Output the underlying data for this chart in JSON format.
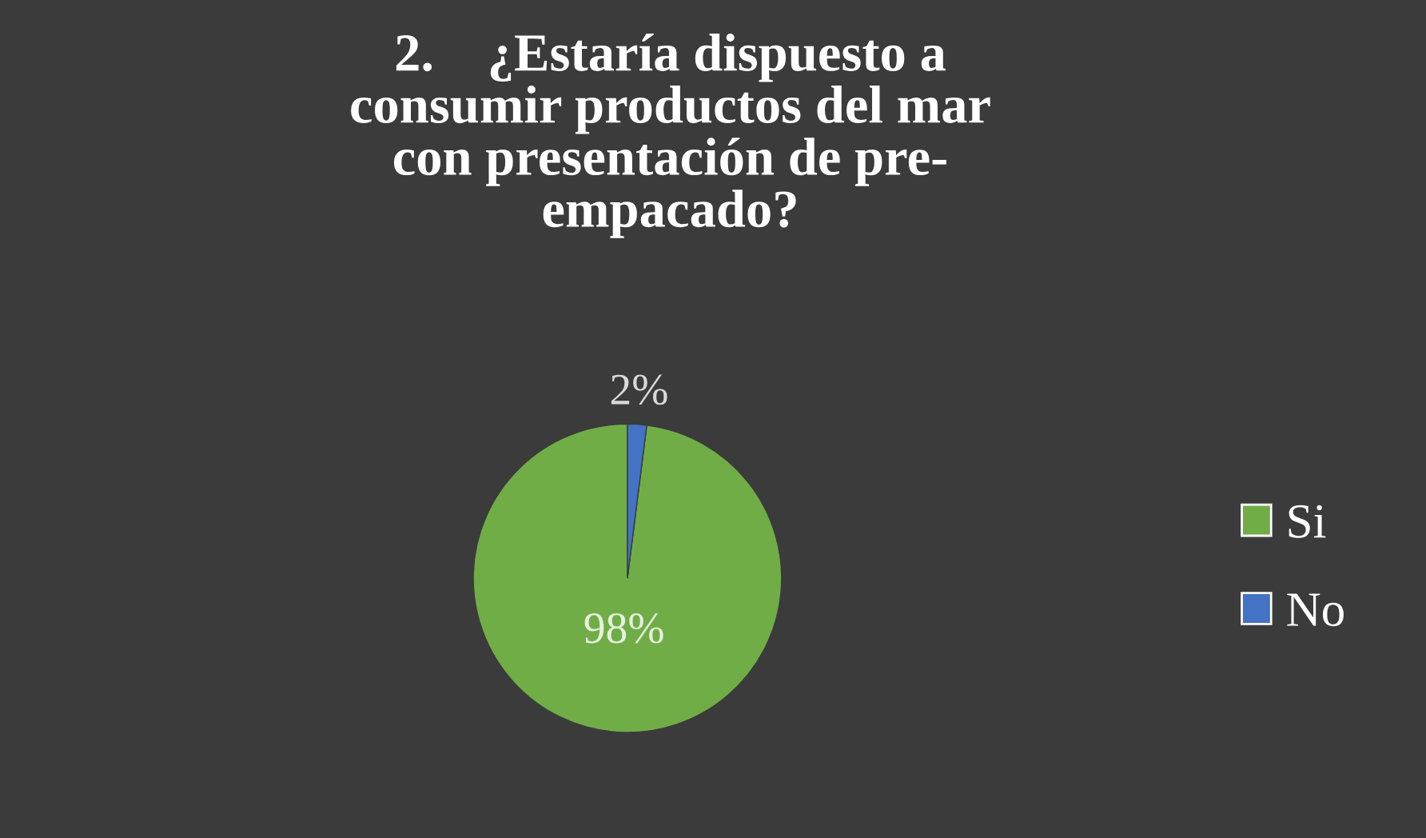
{
  "chart_data": {
    "type": "pie",
    "title": "2.    ¿Estaría dispuesto a\nconsumir productos del mar\ncon presentación de pre-\nempacado?",
    "categories": [
      "Si",
      "No"
    ],
    "values": [
      98,
      2
    ],
    "colors": [
      "#70ad47",
      "#4472c4"
    ],
    "value_labels": [
      "98%",
      "2%"
    ],
    "legend": "right"
  }
}
